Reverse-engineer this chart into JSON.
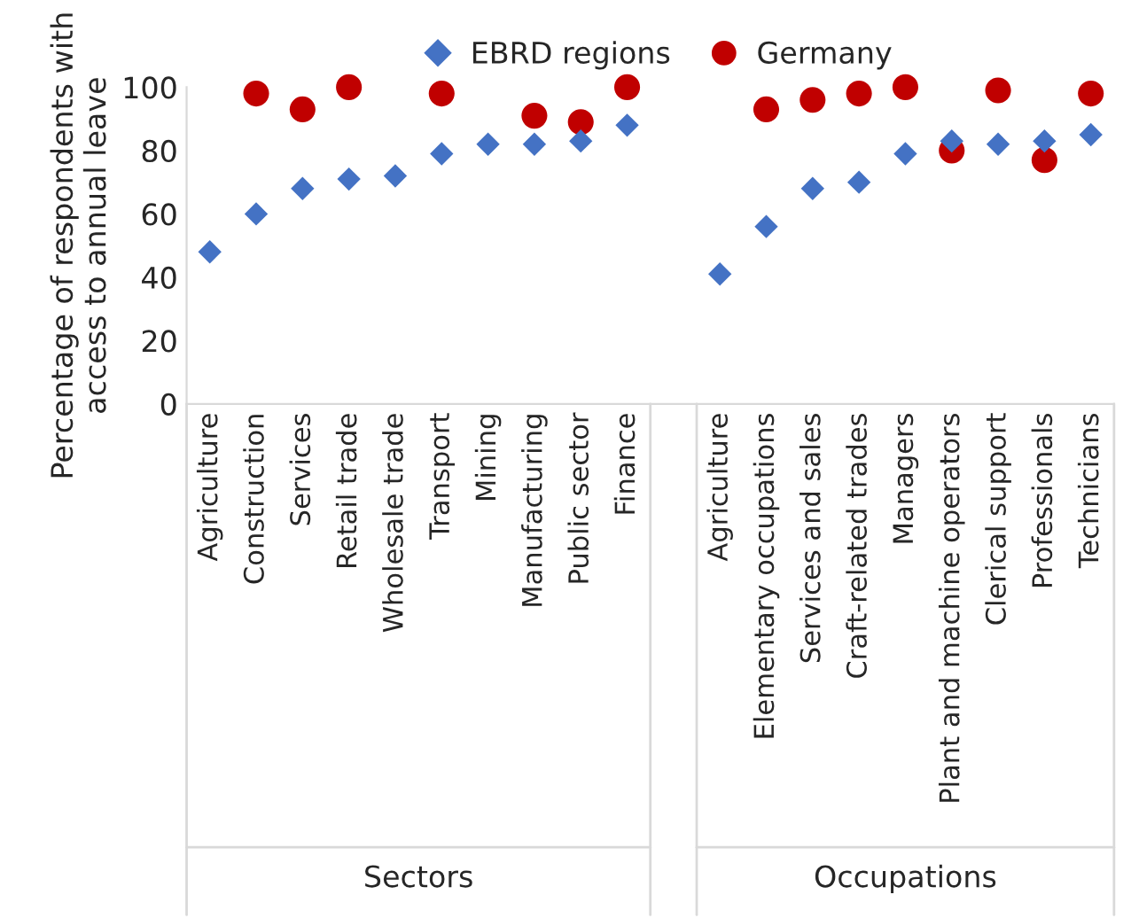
{
  "chart_data": {
    "type": "scatter",
    "ylabel": "Percentage of respondents with access to annual leave",
    "categories": [
      "Agriculture",
      "Construction",
      "Services",
      "Retail trade",
      "Wholesale trade",
      "Transport",
      "Mining",
      "Manufacturing",
      "Public sector",
      "Finance",
      null,
      "Agriculture",
      "Elementary occupations",
      "Services and sales",
      "Craft-related trades",
      "Managers",
      "Plant and machine operators",
      "Clerical support",
      "Professionals",
      "Technicians"
    ],
    "series": [
      {
        "name": "EBRD regions",
        "color": "#4472c4",
        "marker": "diamond",
        "values": [
          48,
          60,
          68,
          71,
          72,
          79,
          82,
          82,
          83,
          88,
          null,
          41,
          56,
          68,
          70,
          79,
          83,
          82,
          83,
          85
        ]
      },
      {
        "name": "Germany",
        "color": "#c00000",
        "marker": "circle",
        "values": [
          null,
          98,
          93,
          100,
          null,
          98,
          null,
          91,
          89,
          100,
          null,
          null,
          93,
          96,
          98,
          100,
          80,
          99,
          77,
          98
        ]
      }
    ],
    "ylim": [
      0,
      100
    ],
    "yticks": [
      0,
      20,
      40,
      60,
      80,
      100
    ],
    "grid": false,
    "legend": "top",
    "annotations": [
      "Sectors",
      "Occupations"
    ]
  }
}
